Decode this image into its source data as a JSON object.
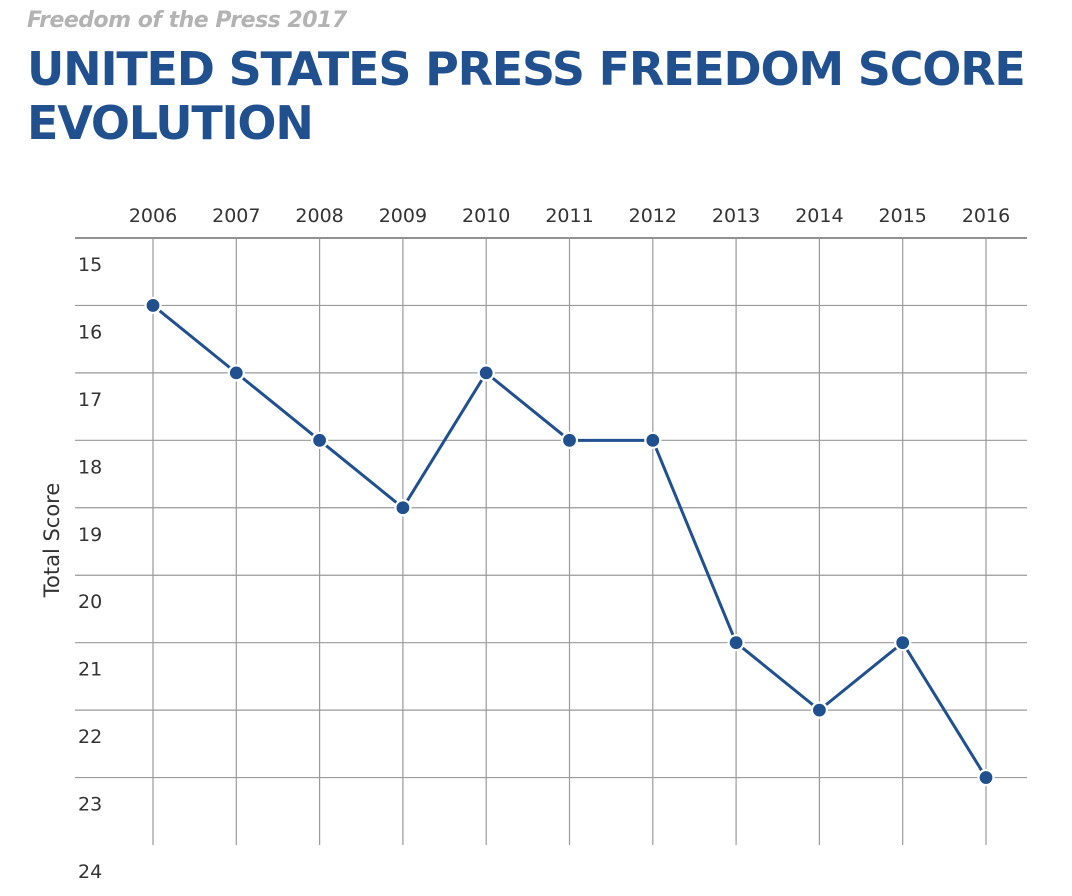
{
  "header": {
    "subtitle": "Freedom of the Press 2017",
    "title": "UNITED STATES PRESS FREEDOM SCORE EVOLUTION"
  },
  "colors": {
    "title": "#21508f",
    "subtitle": "#b3b3b3",
    "line": "#21508f",
    "marker": "#21508f",
    "grid": "#9a9a9a",
    "text": "#333333"
  },
  "chart_data": {
    "type": "line",
    "title": "UNITED STATES PRESS FREEDOM SCORE EVOLUTION",
    "subtitle": "Freedom of the Press 2017",
    "xlabel": "",
    "ylabel": "Total Score",
    "x_axis_position": "top",
    "y_inverted": true,
    "ylim": [
      15,
      24
    ],
    "yticks": [
      15,
      16,
      17,
      18,
      19,
      20,
      21,
      22,
      23,
      24
    ],
    "grid": true,
    "legend": "none",
    "categories": [
      "2006",
      "2007",
      "2008",
      "2009",
      "2010",
      "2011",
      "2012",
      "2013",
      "2014",
      "2015",
      "2016"
    ],
    "series": [
      {
        "values": [
          16,
          17,
          18,
          19,
          17,
          18,
          18,
          21,
          22,
          21,
          23
        ]
      }
    ]
  }
}
